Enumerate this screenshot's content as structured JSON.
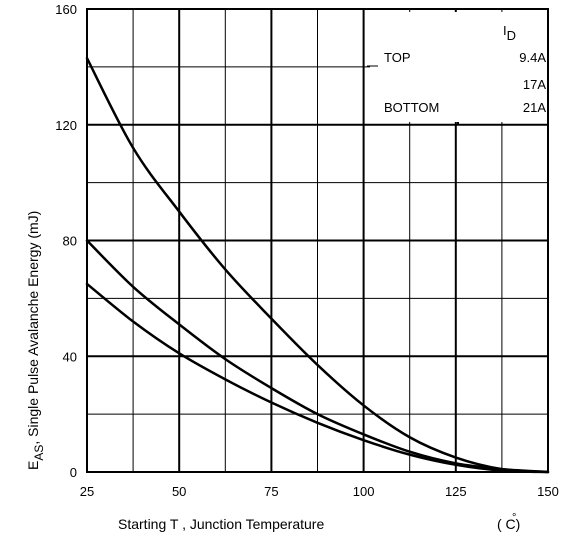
{
  "chart_data": {
    "type": "line",
    "title": "",
    "xlabel": {
      "main": "Starting T , Junction Temperature",
      "unit": "( C)",
      "unit_degree": "°"
    },
    "ylabel": {
      "prefix": "E",
      "subscript": "AS",
      "rest": ", Single Pulse Avalanche Energy (mJ)"
    },
    "xlim": [
      25,
      150
    ],
    "ylim": [
      0,
      160
    ],
    "x_ticks": [
      25,
      50,
      75,
      100,
      125,
      150
    ],
    "y_ticks": [
      0,
      40,
      80,
      120,
      160
    ],
    "x_tick_labels": [
      "25",
      "50",
      "75",
      "100",
      "125",
      "150"
    ],
    "y_tick_labels": [
      "0",
      "40",
      "80",
      "120",
      "160"
    ],
    "x_minor_step": 12.5,
    "y_minor_step": 20,
    "grid": true,
    "legend": {
      "title": "I",
      "title_subscript": "D",
      "placement": "top-right",
      "rows": [
        {
          "position": "TOP",
          "value": "9.4A"
        },
        {
          "position": "",
          "value": "17A"
        },
        {
          "position": "BOTTOM",
          "value": "21A"
        }
      ]
    },
    "series": [
      {
        "id": "9.4A",
        "x": [
          25,
          37.5,
          50,
          62.5,
          75,
          87.5,
          100,
          112.5,
          125,
          137.5,
          150
        ],
        "values": [
          143,
          112,
          90,
          70,
          53,
          37,
          23,
          12,
          5,
          1,
          0
        ]
      },
      {
        "id": "17A",
        "x": [
          25,
          37.5,
          50,
          62.5,
          75,
          87.5,
          100,
          112.5,
          125,
          137.5,
          150
        ],
        "values": [
          80,
          64,
          51,
          39,
          29,
          20,
          13,
          7,
          3,
          1,
          0
        ]
      },
      {
        "id": "21A",
        "x": [
          25,
          37.5,
          50,
          62.5,
          75,
          87.5,
          100,
          112.5,
          125,
          137.5,
          150
        ],
        "values": [
          65,
          52,
          41,
          32,
          24,
          17,
          11,
          6,
          2.5,
          0.5,
          0
        ]
      }
    ]
  }
}
